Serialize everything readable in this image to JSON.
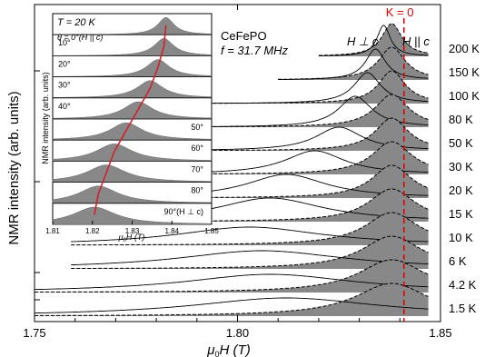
{
  "chart_data": [
    {
      "type": "line",
      "title": "",
      "xlabel_main": "μ",
      "xlabel_sub": "0",
      "xlabel_rest": "H (T)",
      "ylabel": "NMR intensity (arb. units)",
      "xlim": [
        1.75,
        1.85
      ],
      "xticks": [
        "1.75",
        "1.80",
        "1.85"
      ],
      "sample": "CeFePO",
      "frequency": "f = 31.7 MHz",
      "k0_label": "K = 0",
      "k0_field": 1.841,
      "orientation_perp": "H ⊥ c",
      "orientation_par": "H || c",
      "series": [
        {
          "name": "200 K",
          "par_peak": 1.838,
          "perp_peak": 1.836,
          "par_width": 0.003,
          "perp_width": 0.002,
          "x_start": 1.82
        },
        {
          "name": "150 K",
          "par_peak": 1.838,
          "perp_peak": 1.834,
          "par_width": 0.004,
          "perp_width": 0.003,
          "x_start": 1.81
        },
        {
          "name": "100 K",
          "par_peak": 1.838,
          "perp_peak": 1.832,
          "par_width": 0.004,
          "perp_width": 0.004,
          "x_start": 1.79
        },
        {
          "name": "80 K",
          "par_peak": 1.838,
          "perp_peak": 1.829,
          "par_width": 0.005,
          "perp_width": 0.005,
          "x_start": 1.79
        },
        {
          "name": "50 K",
          "par_peak": 1.838,
          "perp_peak": 1.825,
          "par_width": 0.005,
          "perp_width": 0.007,
          "x_start": 1.79
        },
        {
          "name": "30 K",
          "par_peak": 1.838,
          "perp_peak": 1.819,
          "par_width": 0.006,
          "perp_width": 0.009,
          "x_start": 1.79
        },
        {
          "name": "20 K",
          "par_peak": 1.838,
          "perp_peak": 1.812,
          "par_width": 0.006,
          "perp_width": 0.012,
          "x_start": 1.785
        },
        {
          "name": "15 K",
          "par_peak": 1.838,
          "perp_peak": 1.808,
          "par_width": 0.007,
          "perp_width": 0.016,
          "x_start": 1.778
        },
        {
          "name": "10 K",
          "par_peak": 1.838,
          "perp_peak": 1.803,
          "par_width": 0.008,
          "perp_width": 0.022,
          "x_start": 1.759
        },
        {
          "name": "6 K",
          "par_peak": 1.838,
          "perp_peak": 1.806,
          "par_width": 0.009,
          "perp_width": 0.025,
          "x_start": 1.759
        },
        {
          "name": "4.2 K",
          "par_peak": 1.838,
          "perp_peak": 1.808,
          "par_width": 0.01,
          "perp_width": 0.026,
          "x_start": 1.75
        },
        {
          "name": "1.5 K",
          "par_peak": 1.838,
          "perp_peak": 1.812,
          "par_width": 0.011,
          "perp_width": 0.028,
          "x_start": 1.75
        }
      ]
    },
    {
      "type": "area",
      "temperature": "T = 20 K",
      "theta_note": "θ = 0°(H || c)",
      "ylabel": "NMR intensity (arb. units)",
      "xlabel_main": "μ",
      "xlabel_sub": "0",
      "xlabel_rest": "H (T)",
      "xlim": [
        1.81,
        1.85
      ],
      "xticks": [
        "1.81",
        "1.82",
        "1.83",
        "1.84",
        "1.85"
      ],
      "series": [
        {
          "name": "θ = 0°(H || c)",
          "label_side": "left",
          "peak": 1.8385,
          "width": 0.0025
        },
        {
          "name": "10°",
          "label_side": "left",
          "peak": 1.838,
          "width": 0.003
        },
        {
          "name": "20°",
          "label_side": "left",
          "peak": 1.8365,
          "width": 0.0035
        },
        {
          "name": "30°",
          "label_side": "left",
          "peak": 1.8345,
          "width": 0.004
        },
        {
          "name": "40°",
          "label_side": "left",
          "peak": 1.8315,
          "width": 0.0045
        },
        {
          "name": "50°",
          "label_side": "right",
          "peak": 1.8285,
          "width": 0.005
        },
        {
          "name": "60°",
          "label_side": "right",
          "peak": 1.8255,
          "width": 0.0055
        },
        {
          "name": "70°",
          "label_side": "right",
          "peak": 1.8235,
          "width": 0.006
        },
        {
          "name": "80°",
          "label_side": "right",
          "peak": 1.8215,
          "width": 0.006
        },
        {
          "name": "90°(H ⊥ c)",
          "label_side": "right",
          "peak": 1.8205,
          "width": 0.0065
        }
      ]
    }
  ]
}
